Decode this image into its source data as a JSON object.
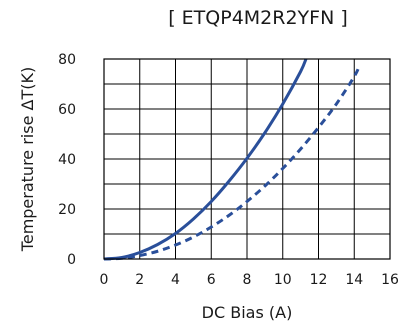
{
  "chart_data": {
    "type": "line",
    "title": "[ ETQP4M2R2YFN ]",
    "xlabel": "DC Bias (A)",
    "ylabel": "Temperature rise ΔT(K)",
    "xlim": [
      0,
      16
    ],
    "ylim": [
      0,
      80
    ],
    "xticks": [
      "0",
      "2",
      "4",
      "6",
      "8",
      "10",
      "12",
      "14",
      "16"
    ],
    "yticks": [
      "0",
      "20",
      "40",
      "60",
      "80"
    ],
    "grid": true,
    "series": [
      {
        "style": "solid",
        "color": "#2a4f9a",
        "x": [
          0,
          1,
          2,
          3,
          4,
          5,
          6,
          7,
          8,
          9,
          10,
          11,
          11.3
        ],
        "y": [
          0,
          0.6,
          2.6,
          5.8,
          10.2,
          16.0,
          23.0,
          31.2,
          40.3,
          50.5,
          62.0,
          75.0,
          80.0
        ]
      },
      {
        "style": "dashed",
        "color": "#2a4f9a",
        "x": [
          0,
          1,
          2,
          3,
          4,
          5,
          6,
          7,
          8,
          9,
          10,
          11,
          12,
          13,
          14,
          14.3
        ],
        "y": [
          0,
          0.3,
          1.4,
          3.1,
          5.6,
          8.8,
          12.8,
          17.5,
          23.0,
          29.2,
          36.2,
          44.0,
          52.6,
          62.0,
          73.0,
          77.5
        ]
      }
    ]
  }
}
